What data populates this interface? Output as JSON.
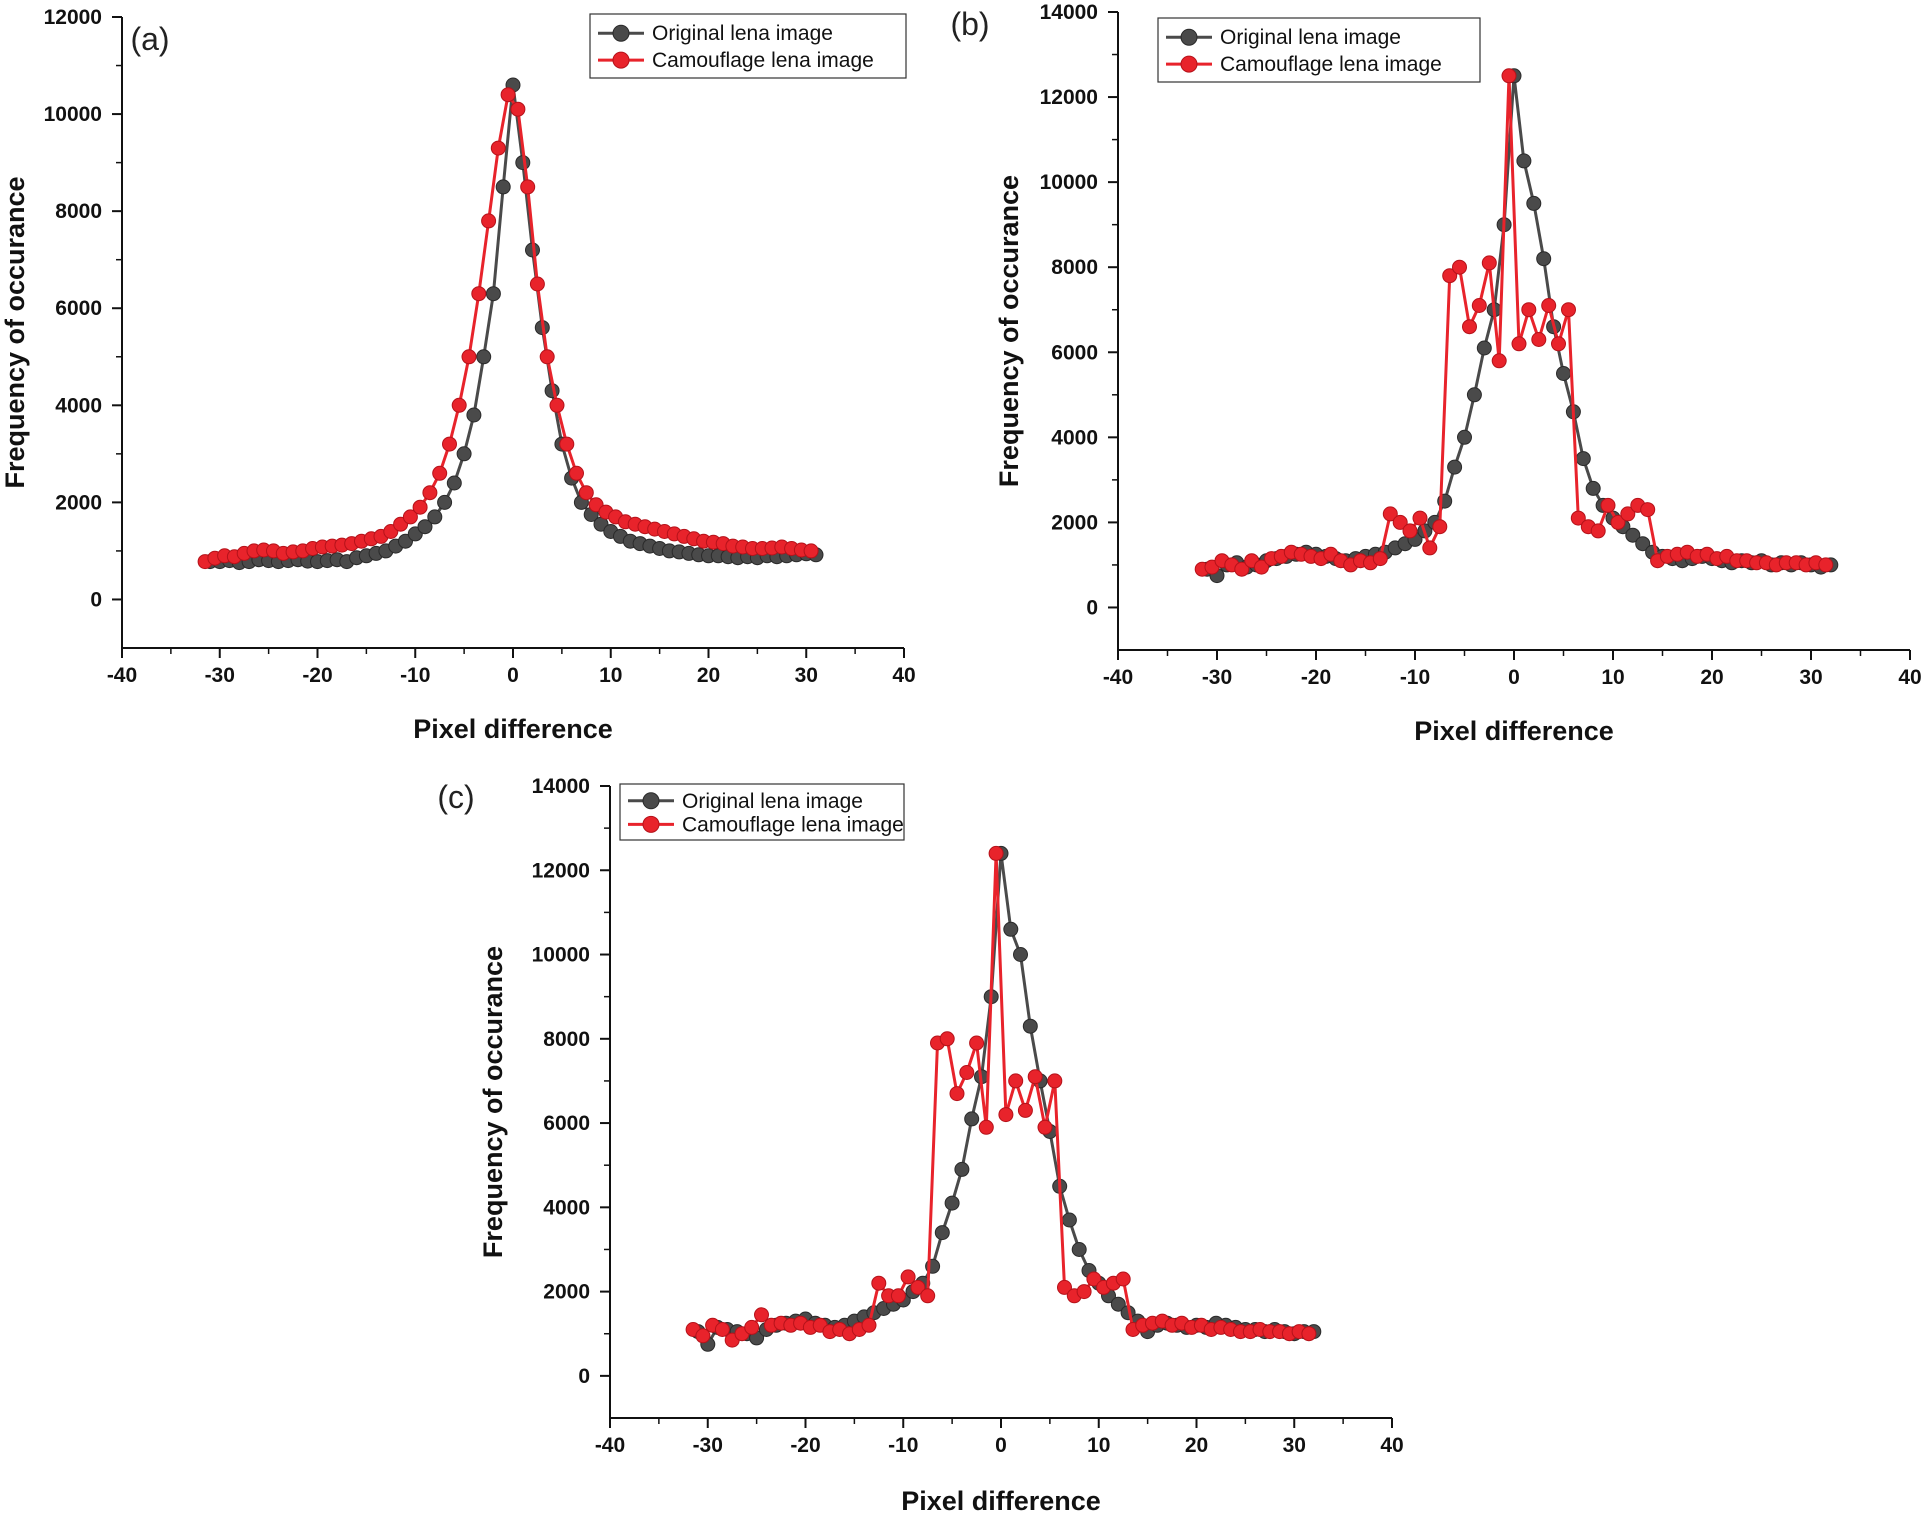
{
  "figure": {
    "panels": [
      {
        "label": "(a)"
      },
      {
        "label": "(b)"
      },
      {
        "label": "(c)"
      }
    ]
  },
  "colors": {
    "original": "#4a4a4a",
    "camouflage": "#e8232b",
    "axis": "#111111"
  },
  "chart_data": [
    {
      "type": "line",
      "panel": "(a)",
      "title": "",
      "xlabel": "Pixel difference",
      "ylabel": "Frequency of occurance",
      "xlim": [
        -40,
        40
      ],
      "ylim": [
        -1000,
        12000
      ],
      "xticks": [
        -40,
        -30,
        -20,
        -10,
        0,
        10,
        20,
        30,
        40
      ],
      "yticks": [
        0,
        2000,
        4000,
        6000,
        8000,
        10000,
        12000
      ],
      "legend": "top-right",
      "grid": false,
      "series": [
        {
          "name": "Original lena image",
          "x": [
            -31,
            -30,
            -29,
            -28,
            -27,
            -26,
            -25,
            -24,
            -23,
            -22,
            -21,
            -20,
            -19,
            -18,
            -17,
            -16,
            -15,
            -14,
            -13,
            -12,
            -11,
            -10,
            -9,
            -8,
            -7,
            -6,
            -5,
            -4,
            -3,
            -2,
            -1,
            0,
            1,
            2,
            3,
            4,
            5,
            6,
            7,
            8,
            9,
            10,
            11,
            12,
            13,
            14,
            15,
            16,
            17,
            18,
            19,
            20,
            21,
            22,
            23,
            24,
            25,
            26,
            27,
            28,
            29,
            30,
            31
          ],
          "y": [
            780,
            780,
            800,
            760,
            780,
            820,
            800,
            780,
            800,
            820,
            790,
            780,
            800,
            820,
            780,
            860,
            900,
            950,
            1000,
            1100,
            1200,
            1350,
            1500,
            1700,
            2000,
            2400,
            3000,
            3800,
            5000,
            6300,
            8500,
            10600,
            9000,
            7200,
            5600,
            4300,
            3200,
            2500,
            2000,
            1750,
            1550,
            1400,
            1300,
            1200,
            1150,
            1100,
            1050,
            1000,
            980,
            950,
            920,
            900,
            900,
            880,
            860,
            880,
            860,
            900,
            880,
            900,
            920,
            940,
            920
          ]
        },
        {
          "name": "Camouflage lena image",
          "x": [
            -31.5,
            -30.5,
            -29.5,
            -28.5,
            -27.5,
            -26.5,
            -25.5,
            -24.5,
            -23.5,
            -22.5,
            -21.5,
            -20.5,
            -19.5,
            -18.5,
            -17.5,
            -16.5,
            -15.5,
            -14.5,
            -13.5,
            -12.5,
            -11.5,
            -10.5,
            -9.5,
            -8.5,
            -7.5,
            -6.5,
            -5.5,
            -4.5,
            -3.5,
            -2.5,
            -1.5,
            -0.5,
            0.5,
            1.5,
            2.5,
            3.5,
            4.5,
            5.5,
            6.5,
            7.5,
            8.5,
            9.5,
            10.5,
            11.5,
            12.5,
            13.5,
            14.5,
            15.5,
            16.5,
            17.5,
            18.5,
            19.5,
            20.5,
            21.5,
            22.5,
            23.5,
            24.5,
            25.5,
            26.5,
            27.5,
            28.5,
            29.5,
            30.5
          ],
          "y": [
            780,
            850,
            900,
            880,
            950,
            1000,
            1020,
            1000,
            950,
            980,
            1000,
            1050,
            1080,
            1100,
            1120,
            1150,
            1200,
            1250,
            1300,
            1400,
            1550,
            1700,
            1900,
            2200,
            2600,
            3200,
            4000,
            5000,
            6300,
            7800,
            9300,
            10400,
            10100,
            8500,
            6500,
            5000,
            4000,
            3200,
            2600,
            2200,
            1950,
            1800,
            1700,
            1600,
            1550,
            1500,
            1450,
            1400,
            1350,
            1300,
            1250,
            1200,
            1180,
            1150,
            1100,
            1080,
            1050,
            1050,
            1060,
            1080,
            1050,
            1020,
            1000
          ]
        }
      ]
    },
    {
      "type": "line",
      "panel": "(b)",
      "title": "",
      "xlabel": "Pixel difference",
      "ylabel": "Frequency of occurance",
      "xlim": [
        -40,
        40
      ],
      "ylim": [
        -1000,
        14000
      ],
      "xticks": [
        -40,
        -30,
        -20,
        -10,
        0,
        10,
        20,
        30,
        40
      ],
      "yticks": [
        0,
        2000,
        4000,
        6000,
        8000,
        10000,
        12000,
        14000
      ],
      "legend": "top-left",
      "grid": false,
      "series": [
        {
          "name": "Original lena image",
          "x": [
            -31,
            -30,
            -29,
            -28,
            -27,
            -26,
            -25,
            -24,
            -23,
            -22,
            -21,
            -20,
            -19,
            -18,
            -17,
            -16,
            -15,
            -14,
            -13,
            -12,
            -11,
            -10,
            -9,
            -8,
            -7,
            -6,
            -5,
            -4,
            -3,
            -2,
            -1,
            0,
            1,
            2,
            3,
            4,
            5,
            6,
            7,
            8,
            9,
            10,
            11,
            12,
            13,
            14,
            15,
            16,
            17,
            18,
            19,
            20,
            21,
            22,
            23,
            24,
            25,
            26,
            27,
            28,
            29,
            30,
            31,
            32
          ],
          "y": [
            900,
            750,
            1000,
            1050,
            950,
            1000,
            1100,
            1150,
            1200,
            1250,
            1300,
            1250,
            1200,
            1150,
            1100,
            1150,
            1200,
            1250,
            1300,
            1400,
            1500,
            1600,
            1800,
            2000,
            2500,
            3300,
            4000,
            5000,
            6100,
            7000,
            9000,
            12500,
            10500,
            9500,
            8200,
            6600,
            5500,
            4600,
            3500,
            2800,
            2400,
            2100,
            1900,
            1700,
            1500,
            1300,
            1200,
            1150,
            1100,
            1150,
            1200,
            1150,
            1100,
            1050,
            1100,
            1050,
            1100,
            1000,
            1050,
            1000,
            1050,
            1000,
            950,
            1000
          ]
        },
        {
          "name": "Camouflage lena image",
          "x": [
            -31.5,
            -30.5,
            -29.5,
            -28.5,
            -27.5,
            -26.5,
            -25.5,
            -24.5,
            -23.5,
            -22.5,
            -21.5,
            -20.5,
            -19.5,
            -18.5,
            -17.5,
            -16.5,
            -15.5,
            -14.5,
            -13.5,
            -12.5,
            -11.5,
            -10.5,
            -9.5,
            -8.5,
            -7.5,
            -6.5,
            -5.5,
            -4.5,
            -3.5,
            -2.5,
            -1.5,
            -0.5,
            0.5,
            1.5,
            2.5,
            3.5,
            4.5,
            5.5,
            6.5,
            7.5,
            8.5,
            9.5,
            10.5,
            11.5,
            12.5,
            13.5,
            14.5,
            15.5,
            16.5,
            17.5,
            18.5,
            19.5,
            20.5,
            21.5,
            22.5,
            23.5,
            24.5,
            25.5,
            26.5,
            27.5,
            28.5,
            29.5,
            30.5,
            31.5
          ],
          "y": [
            900,
            950,
            1100,
            1000,
            900,
            1100,
            950,
            1150,
            1200,
            1300,
            1250,
            1200,
            1150,
            1250,
            1100,
            1000,
            1100,
            1050,
            1150,
            2200,
            2000,
            1800,
            2100,
            1400,
            1900,
            7800,
            8000,
            6600,
            7100,
            8100,
            5800,
            12500,
            6200,
            7000,
            6300,
            7100,
            6200,
            7000,
            2100,
            1900,
            1800,
            2400,
            2000,
            2200,
            2400,
            2300,
            1100,
            1200,
            1250,
            1300,
            1200,
            1250,
            1150,
            1200,
            1100,
            1100,
            1050,
            1050,
            1000,
            1050,
            1050,
            1000,
            1050,
            1000
          ]
        }
      ]
    },
    {
      "type": "line",
      "panel": "(c)",
      "title": "",
      "xlabel": "Pixel difference",
      "ylabel": "Frequency of occurance",
      "xlim": [
        -40,
        40
      ],
      "ylim": [
        -1000,
        14000
      ],
      "xticks": [
        -40,
        -30,
        -20,
        -10,
        0,
        10,
        20,
        30,
        40
      ],
      "yticks": [
        0,
        2000,
        4000,
        6000,
        8000,
        10000,
        12000,
        14000
      ],
      "legend": "top-left",
      "grid": false,
      "series": [
        {
          "name": "Original lena image",
          "x": [
            -31,
            -30,
            -29,
            -28,
            -27,
            -26,
            -25,
            -24,
            -23,
            -22,
            -21,
            -20,
            -19,
            -18,
            -17,
            -16,
            -15,
            -14,
            -13,
            -12,
            -11,
            -10,
            -9,
            -8,
            -7,
            -6,
            -5,
            -4,
            -3,
            -2,
            -1,
            0,
            1,
            2,
            3,
            4,
            5,
            6,
            7,
            8,
            9,
            10,
            11,
            12,
            13,
            14,
            15,
            16,
            17,
            18,
            19,
            20,
            21,
            22,
            23,
            24,
            25,
            26,
            27,
            28,
            29,
            30,
            31,
            32
          ],
          "y": [
            1050,
            750,
            1150,
            1100,
            1050,
            1000,
            900,
            1100,
            1200,
            1250,
            1300,
            1350,
            1250,
            1200,
            1150,
            1200,
            1300,
            1400,
            1500,
            1600,
            1700,
            1800,
            2000,
            2200,
            2600,
            3400,
            4100,
            4900,
            6100,
            7100,
            9000,
            12400,
            10600,
            10000,
            8300,
            7000,
            5800,
            4500,
            3700,
            3000,
            2500,
            2200,
            1900,
            1700,
            1500,
            1300,
            1050,
            1200,
            1250,
            1200,
            1150,
            1200,
            1150,
            1250,
            1200,
            1150,
            1100,
            1100,
            1050,
            1100,
            1050,
            1000,
            1050,
            1050
          ]
        },
        {
          "name": "Camouflage lena image",
          "x": [
            -31.5,
            -30.5,
            -29.5,
            -28.5,
            -27.5,
            -26.5,
            -25.5,
            -24.5,
            -23.5,
            -22.5,
            -21.5,
            -20.5,
            -19.5,
            -18.5,
            -17.5,
            -16.5,
            -15.5,
            -14.5,
            -13.5,
            -12.5,
            -11.5,
            -10.5,
            -9.5,
            -8.5,
            -7.5,
            -6.5,
            -5.5,
            -4.5,
            -3.5,
            -2.5,
            -1.5,
            -0.5,
            0.5,
            1.5,
            2.5,
            3.5,
            4.5,
            5.5,
            6.5,
            7.5,
            8.5,
            9.5,
            10.5,
            11.5,
            12.5,
            13.5,
            14.5,
            15.5,
            16.5,
            17.5,
            18.5,
            19.5,
            20.5,
            21.5,
            22.5,
            23.5,
            24.5,
            25.5,
            26.5,
            27.5,
            28.5,
            29.5,
            30.5,
            31.5
          ],
          "y": [
            1100,
            950,
            1200,
            1100,
            850,
            1000,
            1150,
            1450,
            1200,
            1250,
            1200,
            1250,
            1150,
            1200,
            1050,
            1100,
            1000,
            1100,
            1200,
            2200,
            1900,
            1900,
            2350,
            2100,
            1900,
            7900,
            8000,
            6700,
            7200,
            7900,
            5900,
            12400,
            6200,
            7000,
            6300,
            7100,
            5900,
            7000,
            2100,
            1900,
            2000,
            2300,
            2100,
            2200,
            2300,
            1100,
            1200,
            1250,
            1300,
            1200,
            1250,
            1150,
            1200,
            1100,
            1150,
            1100,
            1050,
            1050,
            1100,
            1050,
            1050,
            1000,
            1050,
            1000
          ]
        }
      ]
    }
  ]
}
